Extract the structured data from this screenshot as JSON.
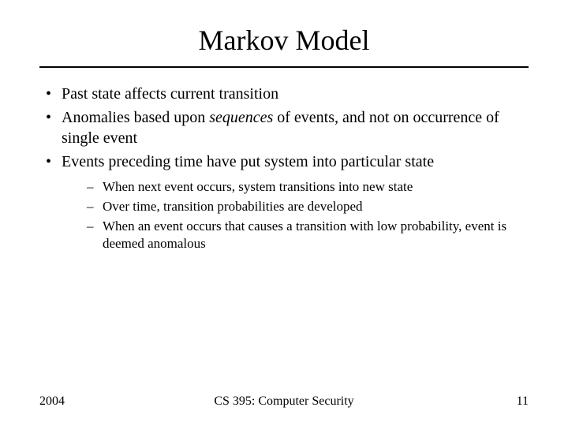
{
  "slide": {
    "title": "Markov Model",
    "bullets": {
      "b1": "Past state affects current transition",
      "b2_pre": "Anomalies based upon ",
      "b2_italic": "sequences",
      "b2_post": " of events, and not on occurrence of single event",
      "b3": "Events preceding time have put system into particular state",
      "sub": {
        "s1": "When next event occurs, system transitions into new state",
        "s2": "Over time, transition probabilities are developed",
        "s3": "When an event occurs that causes a transition with low probability, event is deemed anomalous"
      }
    },
    "footer": {
      "year": "2004",
      "course": "CS 395: Computer Security",
      "page": "11"
    },
    "style": {
      "background_color": "#ffffff",
      "text_color": "#000000",
      "rule_color": "#000000",
      "title_fontsize": 36,
      "bullet_fontsize": 20,
      "subbullet_fontsize": 17,
      "footer_fontsize": 16,
      "font_family": "Times New Roman"
    }
  }
}
